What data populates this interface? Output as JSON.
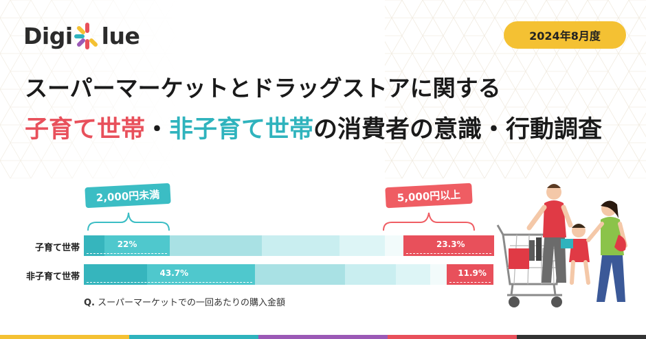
{
  "brand": {
    "logo_left": "Digi",
    "logo_right": "lue"
  },
  "date_badge": "2024年8月度",
  "title": {
    "line1": "スーパーマーケットとドラッグストアに関する",
    "line2_red": "子育て世帯",
    "line2_sep": "・",
    "line2_teal": "非子育て世帯",
    "line2_rest": "の消費者の意識・行動調査"
  },
  "callouts": {
    "left": "2,000円未満",
    "right": "5,000円以上"
  },
  "question": {
    "prefix": "Q.",
    "text": "スーパーマーケットでの一回あたりの購入金額"
  },
  "colors": {
    "teal_dark": "#36b5bd",
    "teal_mid": "#4fc8cd",
    "teal_light": "#a9e1e4",
    "teal_pale": "#c9eef0",
    "teal_paler": "#ddf5f6",
    "white_seg": "#f2fbfb",
    "red": "#e8505b",
    "yellow": "#f4c133"
  },
  "chart_data": {
    "type": "bar",
    "orientation": "horizontal",
    "stacked": true,
    "categories": [
      "子育て世帯",
      "非子育て世帯"
    ],
    "series": [
      {
        "values": [
          22,
          43.7
        ],
        "labels": [
          "22%",
          "43.7%"
        ]
      },
      {
        "values": [
          23.3,
          11.9
        ],
        "labels": [
          "23.3%",
          "11.9%"
        ]
      }
    ],
    "segments": [
      [
        5.2,
        16.8,
        23.5,
        19.8,
        11.6,
        4.6,
        23.3
      ],
      [
        16.2,
        27.5,
        22.9,
        13.1,
        8.7,
        4.3,
        11.9
      ]
    ],
    "xlim": [
      0,
      100
    ]
  }
}
